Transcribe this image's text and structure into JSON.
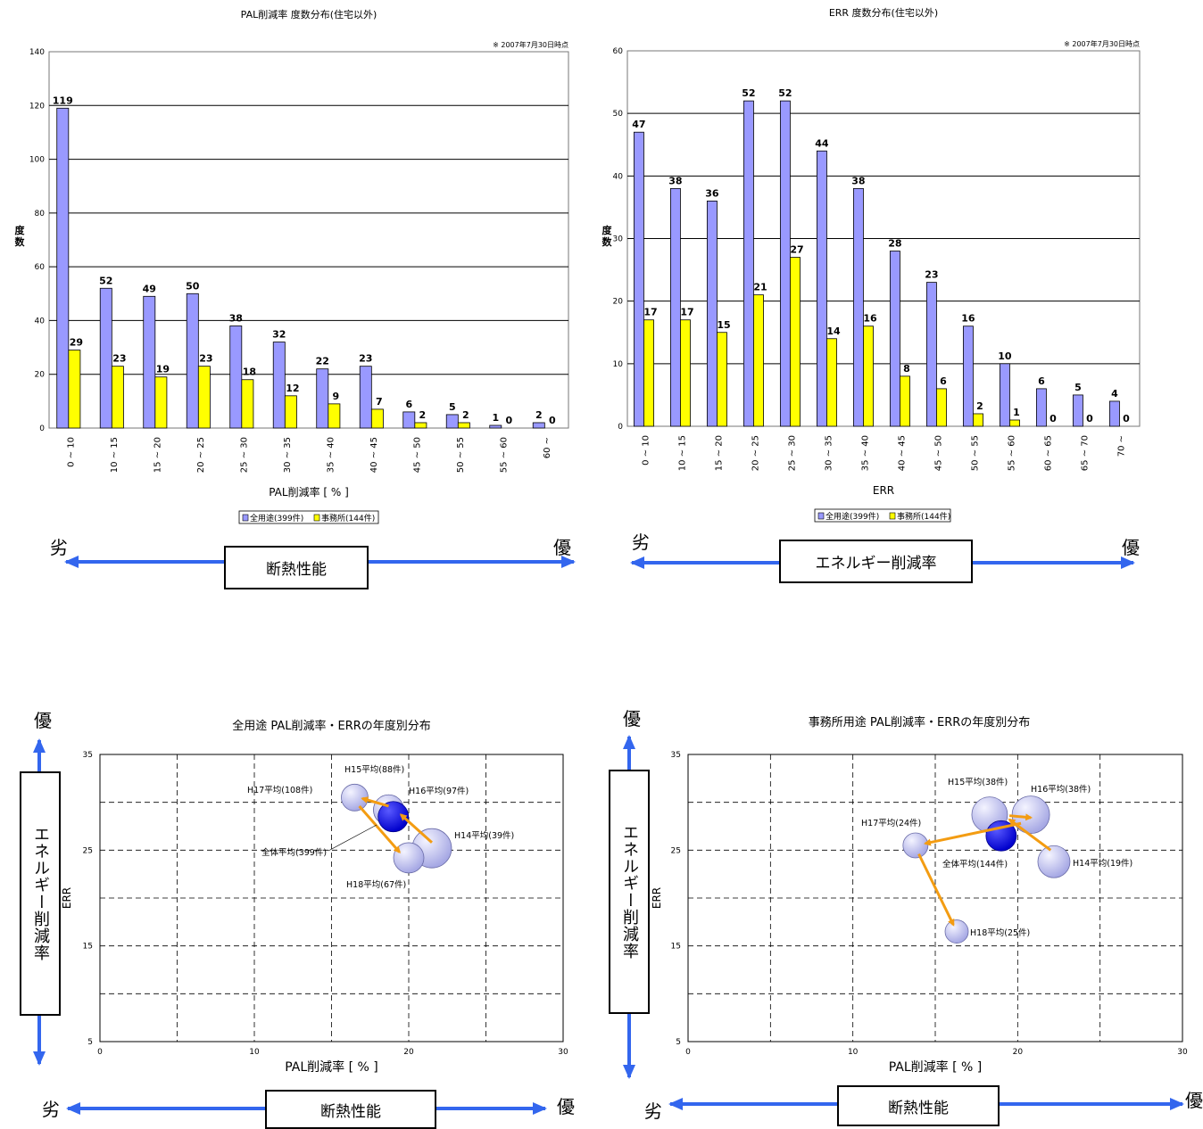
{
  "chart_data": [
    {
      "type": "bar",
      "title": "PAL削減率 度数分布(住宅以外)",
      "note": "※ 2007年7月30日時点",
      "xlabel": "PAL削減率 [ % ]",
      "ylabel": "度数",
      "ylim": [
        0,
        140
      ],
      "ystep": 20,
      "categories": [
        "0 ~ 10",
        "10 ~ 15",
        "15 ~ 20",
        "20 ~ 25",
        "25 ~ 30",
        "30 ~ 35",
        "35 ~ 40",
        "40 ~ 45",
        "45 ~ 50",
        "50 ~ 55",
        "55 ~ 60",
        "60 ~"
      ],
      "series": [
        {
          "name": "全用途(399件)",
          "color": "#9999ff",
          "values": [
            119,
            52,
            49,
            50,
            38,
            32,
            22,
            23,
            6,
            5,
            1,
            2
          ]
        },
        {
          "name": "事務所(144件)",
          "color": "#ffff00",
          "values": [
            29,
            23,
            19,
            23,
            18,
            12,
            9,
            7,
            2,
            2,
            0,
            0
          ]
        }
      ],
      "grid": true,
      "legend": "bottom"
    },
    {
      "type": "bar",
      "title": "ERR 度数分布(住宅以外)",
      "note": "※ 2007年7月30日時点",
      "xlabel": "ERR",
      "ylabel": "度数",
      "ylim": [
        0,
        60
      ],
      "ystep": 10,
      "categories": [
        "0 ~ 10",
        "10 ~ 15",
        "15 ~ 20",
        "20 ~ 25",
        "25 ~ 30",
        "30 ~ 35",
        "35 ~ 40",
        "40 ~ 45",
        "45 ~ 50",
        "50 ~ 55",
        "55 ~ 60",
        "60 ~ 65",
        "65 ~ 70",
        "70 ~"
      ],
      "series": [
        {
          "name": "全用途(399件)",
          "color": "#9999ff",
          "values": [
            47,
            38,
            36,
            52,
            52,
            44,
            38,
            28,
            23,
            16,
            10,
            6,
            5,
            4
          ]
        },
        {
          "name": "事務所(144件)",
          "color": "#ffff00",
          "values": [
            17,
            17,
            15,
            21,
            27,
            14,
            16,
            8,
            6,
            2,
            1,
            0,
            0,
            0
          ]
        }
      ],
      "grid": true,
      "legend": "bottom"
    },
    {
      "type": "scatter",
      "title": "全用途 PAL削減率・ERRの年度別分布",
      "xlabel": "PAL削減率 [ % ]",
      "ylabel": "ERR",
      "xlim": [
        0,
        30
      ],
      "ylim": [
        5,
        35
      ],
      "xticks": [
        0,
        10,
        20,
        30
      ],
      "yticks": [
        5,
        15,
        25,
        35
      ],
      "points": [
        {
          "label": "H14平均(39件)",
          "x": 21.5,
          "y": 25.2,
          "r": 22,
          "highlight": false
        },
        {
          "label": "H15平均(88件)",
          "x": 18.7,
          "y": 29.2,
          "r": 17,
          "highlight": false
        },
        {
          "label": "H16平均(97件)",
          "x": 18.7,
          "y": 29.2,
          "r": 17,
          "highlight": false
        },
        {
          "label": "H17平均(108件)",
          "x": 16.5,
          "y": 30.5,
          "r": 15,
          "highlight": false
        },
        {
          "label": "H18平均(67件)",
          "x": 20.0,
          "y": 24.2,
          "r": 17,
          "highlight": false
        },
        {
          "label": "全体平均(399件)",
          "x": 19.0,
          "y": 28.5,
          "r": 17,
          "highlight": true
        }
      ],
      "arrows": [
        [
          21.5,
          25.8,
          19.5,
          28.7
        ],
        [
          18.7,
          29.6,
          17.0,
          30.4
        ],
        [
          16.8,
          29.6,
          19.4,
          24.8
        ]
      ]
    },
    {
      "type": "scatter",
      "title": "事務所用途 PAL削減率・ERRの年度別分布",
      "xlabel": "PAL削減率 [ % ]",
      "ylabel": "ERR",
      "xlim": [
        0,
        30
      ],
      "ylim": [
        5,
        35
      ],
      "xticks": [
        0,
        10,
        20,
        30
      ],
      "yticks": [
        5,
        15,
        25,
        35
      ],
      "points": [
        {
          "label": "H14平均(19件)",
          "x": 22.2,
          "y": 23.8,
          "r": 18,
          "highlight": false
        },
        {
          "label": "H15平均(38件)",
          "x": 18.3,
          "y": 28.7,
          "r": 20,
          "highlight": false
        },
        {
          "label": "H16平均(38件)",
          "x": 20.8,
          "y": 28.7,
          "r": 21,
          "highlight": false
        },
        {
          "label": "H17平均(24件)",
          "x": 13.8,
          "y": 25.5,
          "r": 14,
          "highlight": false
        },
        {
          "label": "H18平均(25件)",
          "x": 16.3,
          "y": 16.5,
          "r": 13,
          "highlight": false
        },
        {
          "label": "全体平均(144件)",
          "x": 19.0,
          "y": 26.5,
          "r": 17,
          "highlight": true
        }
      ],
      "arrows": [
        [
          22.0,
          25.0,
          19.5,
          28.2
        ],
        [
          19.5,
          28.6,
          20.8,
          28.4
        ],
        [
          20.2,
          27.8,
          14.4,
          25.7
        ],
        [
          14.0,
          24.6,
          16.1,
          17.2
        ]
      ]
    }
  ],
  "scales": {
    "bad": "劣",
    "good": "優",
    "insulation": "断熱性能",
    "energy": "エネルギー削減率"
  }
}
